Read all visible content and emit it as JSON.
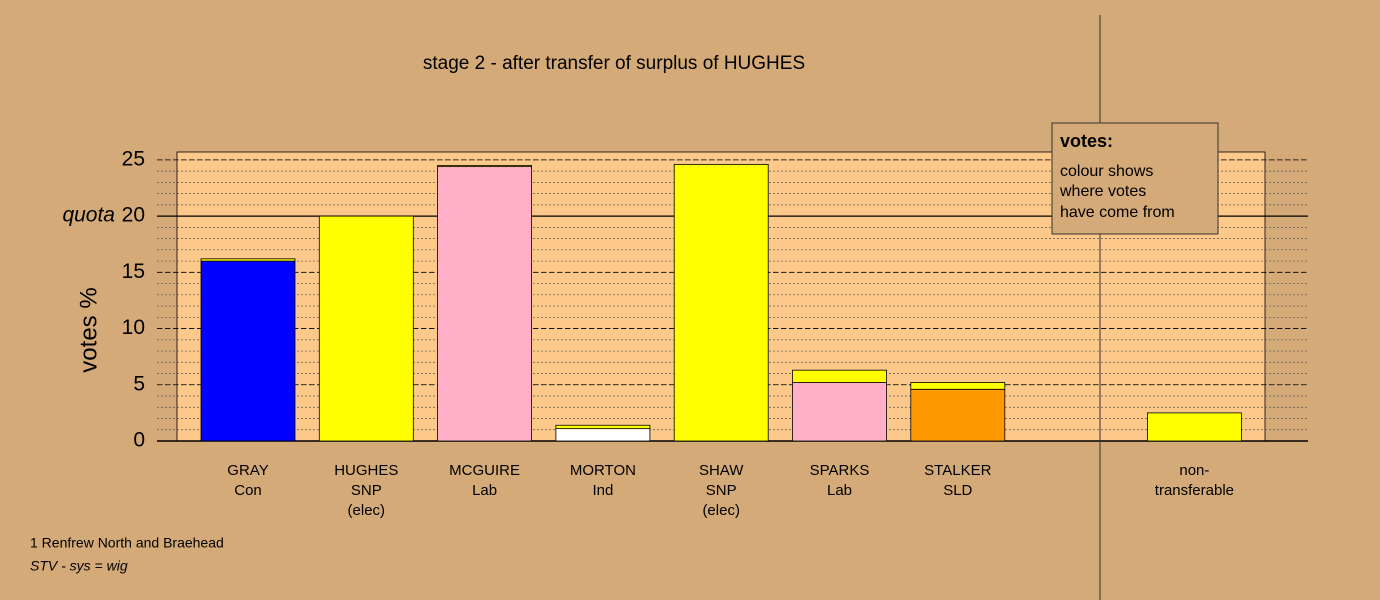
{
  "chart_data": {
    "type": "stacked_bar",
    "title": "stage 2 - after transfer of surplus of HUGHES",
    "y_label": "votes %",
    "categories": [
      [
        "GRAY",
        "Con"
      ],
      [
        "HUGHES",
        "SNP",
        "(elec)"
      ],
      [
        "MCGUIRE",
        "Lab"
      ],
      [
        "MORTON",
        "Ind"
      ],
      [
        "SHAW",
        "SNP",
        "(elec)"
      ],
      [
        "SPARKS",
        "Lab"
      ],
      [
        "STALKER",
        "SLD"
      ],
      null,
      [
        "non-",
        "transferable"
      ]
    ],
    "series": [
      {
        "colors": [
          "#0000ff",
          "#ffff00",
          "#ffb0c8",
          "#ffffff",
          "#ffff00",
          "#ffb0c8",
          "#ff9900",
          null,
          null
        ],
        "values": [
          16.0,
          20.0,
          24.4,
          1.1,
          24.6,
          5.2,
          4.6,
          null,
          null
        ]
      },
      {
        "color": "#ffff00",
        "values": [
          0.2,
          0,
          0.1,
          0.3,
          0,
          1.1,
          0.6,
          null,
          2.5
        ]
      }
    ],
    "ylim": [
      0,
      25.7
    ],
    "yticks": [
      0,
      5,
      10,
      15,
      20,
      25
    ],
    "minor_grid_step": 1,
    "quota": 20,
    "quota_label": "quota",
    "grid": true,
    "info_box": {
      "title": "votes:",
      "lines": [
        "colour shows",
        "where votes",
        "have come from"
      ]
    },
    "notes": [
      "1 Renfrew North and Braehead",
      "STV - sys = wig"
    ]
  }
}
